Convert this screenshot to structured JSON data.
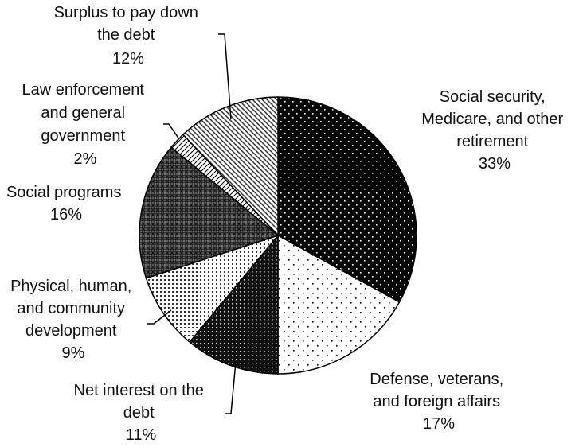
{
  "chart_data": {
    "type": "pie",
    "title": "",
    "start_angle_deg": 0,
    "direction": "clockwise",
    "slices": [
      {
        "name": "Social security, Medicare, and other retirement",
        "lines": [
          "Social security,",
          "Medicare, and other",
          "retirement"
        ],
        "value": 33,
        "value_label": "33%",
        "fill": "dots-on-black"
      },
      {
        "name": "Defense, veterans, and foreign affairs",
        "lines": [
          "Defense, veterans,",
          "and foreign affairs"
        ],
        "value": 17,
        "value_label": "17%",
        "fill": "sparse-dots"
      },
      {
        "name": "Net interest on the debt",
        "lines": [
          "Net interest on the",
          "debt"
        ],
        "value": 11,
        "value_label": "11%",
        "fill": "dense-dark-dots"
      },
      {
        "name": "Physical, human, and community development",
        "lines": [
          "Physical, human,",
          "and community",
          "development"
        ],
        "value": 9,
        "value_label": "9%",
        "fill": "fine-dots"
      },
      {
        "name": "Social programs",
        "lines": [
          "Social programs"
        ],
        "value": 16,
        "value_label": "16%",
        "fill": "crosshatch-dark"
      },
      {
        "name": "Law enforcement and general government",
        "lines": [
          "Law enforcement",
          "and general",
          "government"
        ],
        "value": 2,
        "value_label": "2%",
        "fill": "diagonal-lines"
      },
      {
        "name": "Surplus to pay down the debt",
        "lines": [
          "Surplus to pay down",
          "the debt"
        ],
        "value": 12,
        "value_label": "12%",
        "fill": "vertical-stripes"
      }
    ]
  }
}
